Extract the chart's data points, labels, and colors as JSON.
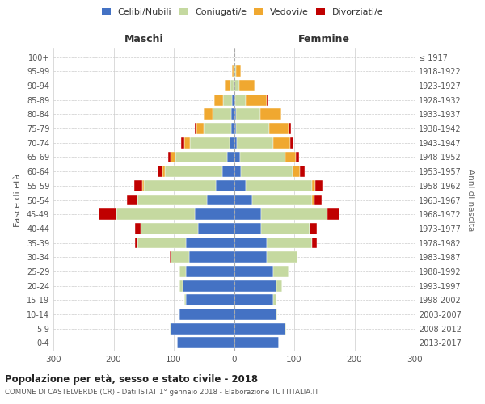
{
  "age_groups": [
    "0-4",
    "5-9",
    "10-14",
    "15-19",
    "20-24",
    "25-29",
    "30-34",
    "35-39",
    "40-44",
    "45-49",
    "50-54",
    "55-59",
    "60-64",
    "65-69",
    "70-74",
    "75-79",
    "80-84",
    "85-89",
    "90-94",
    "95-99",
    "100+"
  ],
  "birth_years": [
    "2013-2017",
    "2008-2012",
    "2003-2007",
    "1998-2002",
    "1993-1997",
    "1988-1992",
    "1983-1987",
    "1978-1982",
    "1973-1977",
    "1968-1972",
    "1963-1967",
    "1958-1962",
    "1953-1957",
    "1948-1952",
    "1943-1947",
    "1938-1942",
    "1933-1937",
    "1928-1932",
    "1923-1927",
    "1918-1922",
    "≤ 1917"
  ],
  "colors": {
    "celibi": "#4472c4",
    "coniugati": "#c5d9a0",
    "vedovi": "#f0a830",
    "divorziati": "#c00000"
  },
  "males": {
    "celibi": [
      95,
      105,
      90,
      80,
      85,
      80,
      75,
      80,
      60,
      65,
      45,
      30,
      20,
      12,
      8,
      5,
      5,
      3,
      1,
      0,
      0
    ],
    "coniugati": [
      0,
      2,
      2,
      2,
      5,
      10,
      30,
      80,
      95,
      130,
      115,
      120,
      95,
      85,
      65,
      45,
      30,
      15,
      5,
      1,
      0
    ],
    "vedovi": [
      0,
      0,
      0,
      0,
      0,
      0,
      0,
      0,
      0,
      0,
      0,
      2,
      4,
      8,
      10,
      12,
      15,
      15,
      10,
      2,
      0
    ],
    "divorziati": [
      0,
      0,
      0,
      0,
      0,
      0,
      2,
      5,
      10,
      30,
      18,
      14,
      8,
      5,
      5,
      3,
      0,
      0,
      0,
      0,
      0
    ]
  },
  "females": {
    "celibi": [
      75,
      85,
      70,
      65,
      70,
      65,
      55,
      55,
      45,
      45,
      30,
      20,
      12,
      10,
      5,
      4,
      3,
      2,
      1,
      1,
      0
    ],
    "coniugati": [
      0,
      2,
      2,
      5,
      10,
      25,
      50,
      75,
      80,
      110,
      100,
      110,
      85,
      75,
      60,
      55,
      40,
      18,
      8,
      2,
      0
    ],
    "vedovi": [
      0,
      0,
      0,
      0,
      0,
      0,
      0,
      0,
      0,
      0,
      3,
      5,
      12,
      18,
      28,
      32,
      35,
      35,
      25,
      8,
      1
    ],
    "divorziati": [
      0,
      0,
      0,
      0,
      0,
      0,
      0,
      8,
      12,
      20,
      12,
      12,
      8,
      5,
      5,
      4,
      0,
      2,
      0,
      0,
      0
    ]
  },
  "xlim": 300,
  "title_main": "Popolazione per età, sesso e stato civile - 2018",
  "title_sub": "COMUNE DI CASTELVERDE (CR) - Dati ISTAT 1° gennaio 2018 - Elaborazione TUTTITALIA.IT",
  "ylabel_left": "Fasce di età",
  "ylabel_right": "Anni di nascita",
  "header_left": "Maschi",
  "header_right": "Femmine"
}
